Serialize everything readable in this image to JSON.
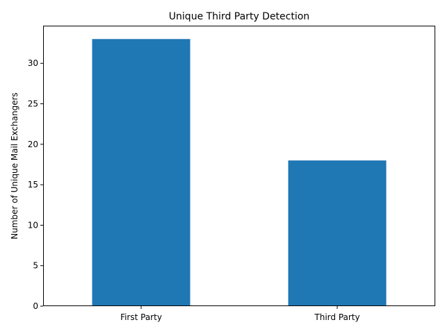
{
  "chart_data": {
    "type": "bar",
    "title": "Unique Third Party Detection",
    "xlabel": "",
    "ylabel": "Number of Unique Mail Exchangers",
    "categories": [
      "First Party",
      "Third Party"
    ],
    "values": [
      33,
      18
    ],
    "ylim": [
      0,
      34.65
    ],
    "yticks": [
      0,
      5,
      10,
      15,
      20,
      25,
      30
    ],
    "ytick_labels": [
      "0",
      "5",
      "10",
      "15",
      "20",
      "25",
      "30"
    ],
    "grid": false,
    "legend": "none",
    "bar_color": "#1f77b4"
  }
}
